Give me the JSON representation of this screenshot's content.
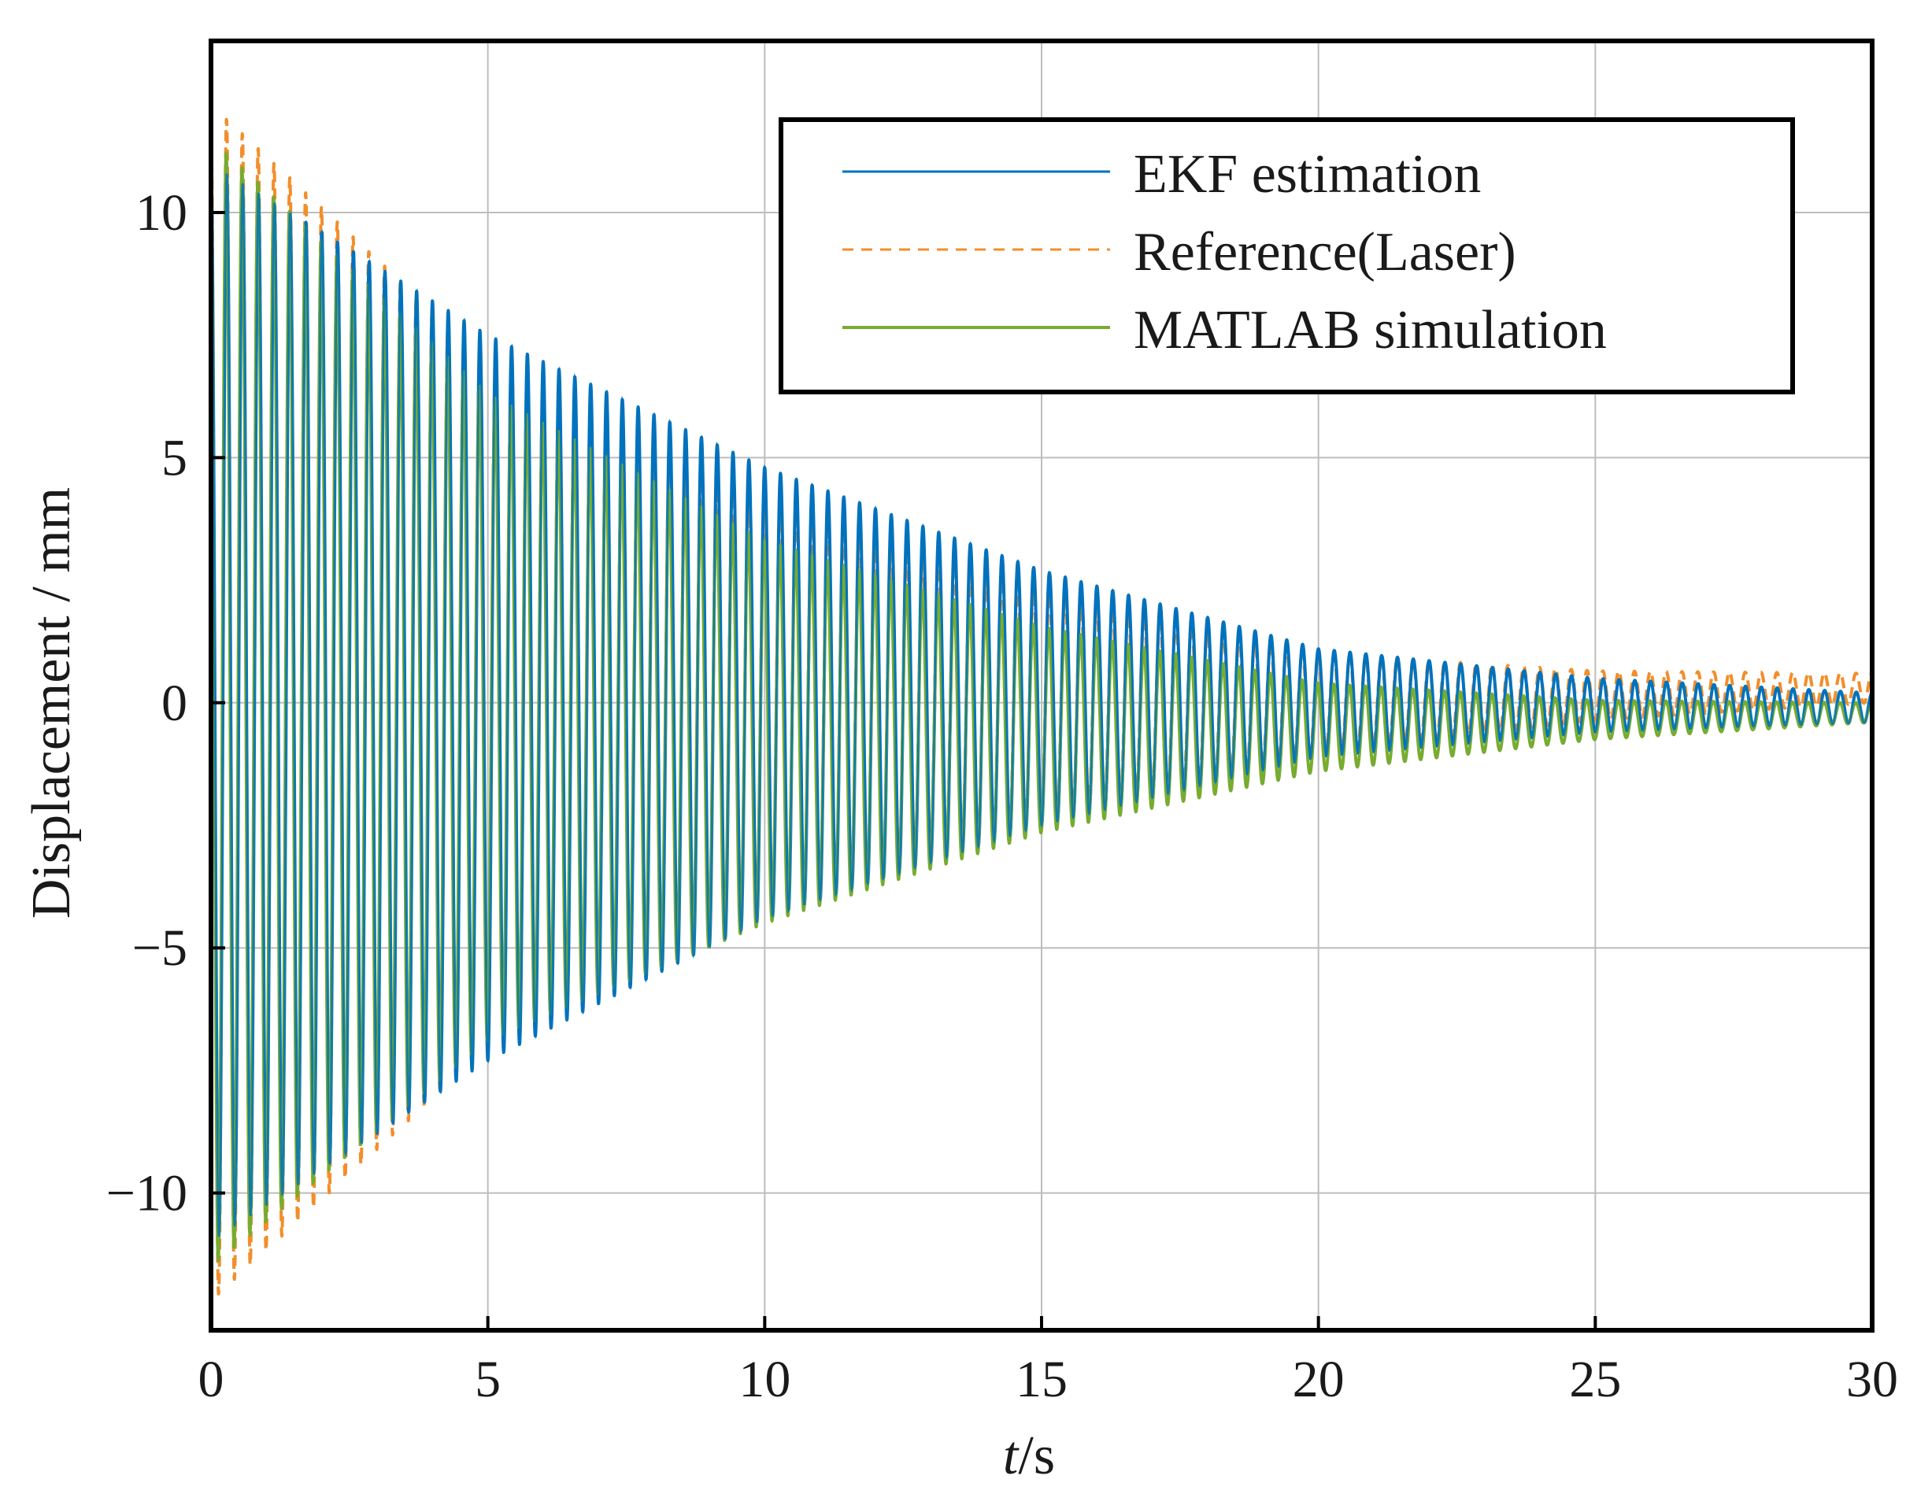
{
  "chart_data": {
    "type": "line",
    "title": "",
    "xlabel_italic": "t",
    "xlabel_rest": "/s",
    "ylabel": "Displacement / mm",
    "xlim": [
      0,
      30
    ],
    "ylim": [
      -12.8,
      13.5
    ],
    "xticks": [
      0,
      5,
      10,
      15,
      20,
      25,
      30
    ],
    "yticks": [
      -10,
      -5,
      0,
      5,
      10
    ],
    "xtick_labels": [
      "0",
      "5",
      "10",
      "15",
      "20",
      "25",
      "30"
    ],
    "ytick_labels": [
      "−10",
      "−5",
      "0",
      "5",
      "10"
    ],
    "grid": true,
    "legend_position": "top-right",
    "signal": {
      "frequency_hz": 3.5,
      "duration_s": 30
    },
    "series": [
      {
        "name": "EKF estimation",
        "color": "#0072BD",
        "style": "solid",
        "amplitude_at_t": [
          [
            0,
            11.0
          ],
          [
            5,
            7.4
          ],
          [
            10,
            4.6
          ],
          [
            15,
            2.6
          ],
          [
            20,
            1.1
          ],
          [
            25,
            0.55
          ],
          [
            30,
            0.3
          ]
        ],
        "offset_at_t": [
          [
            0,
            0.0
          ],
          [
            10,
            0.2
          ],
          [
            20,
            0.0
          ],
          [
            30,
            -0.1
          ]
        ]
      },
      {
        "name": "Reference(Laser)",
        "color": "#F28E2B",
        "style": "dashed",
        "amplitude_at_t": [
          [
            0,
            12.2
          ],
          [
            5,
            7.0
          ],
          [
            10,
            4.2
          ],
          [
            15,
            2.3
          ],
          [
            20,
            1.0
          ],
          [
            25,
            0.5
          ],
          [
            30,
            0.3
          ]
        ],
        "offset_at_t": [
          [
            0,
            0.0
          ],
          [
            10,
            -0.1
          ],
          [
            20,
            0.0
          ],
          [
            30,
            0.3
          ]
        ]
      },
      {
        "name": "MATLAB simulation",
        "color": "#77AC30",
        "style": "solid",
        "amplitude_at_t": [
          [
            0,
            11.5
          ],
          [
            5,
            6.6
          ],
          [
            10,
            3.9
          ],
          [
            15,
            2.1
          ],
          [
            20,
            0.9
          ],
          [
            25,
            0.4
          ],
          [
            30,
            0.2
          ]
        ],
        "offset_at_t": [
          [
            0,
            0.0
          ],
          [
            10,
            -0.6
          ],
          [
            20,
            -0.5
          ],
          [
            30,
            -0.2
          ]
        ]
      }
    ]
  },
  "colors": {
    "axis": "#000000",
    "grid": "#bdbdbd"
  }
}
